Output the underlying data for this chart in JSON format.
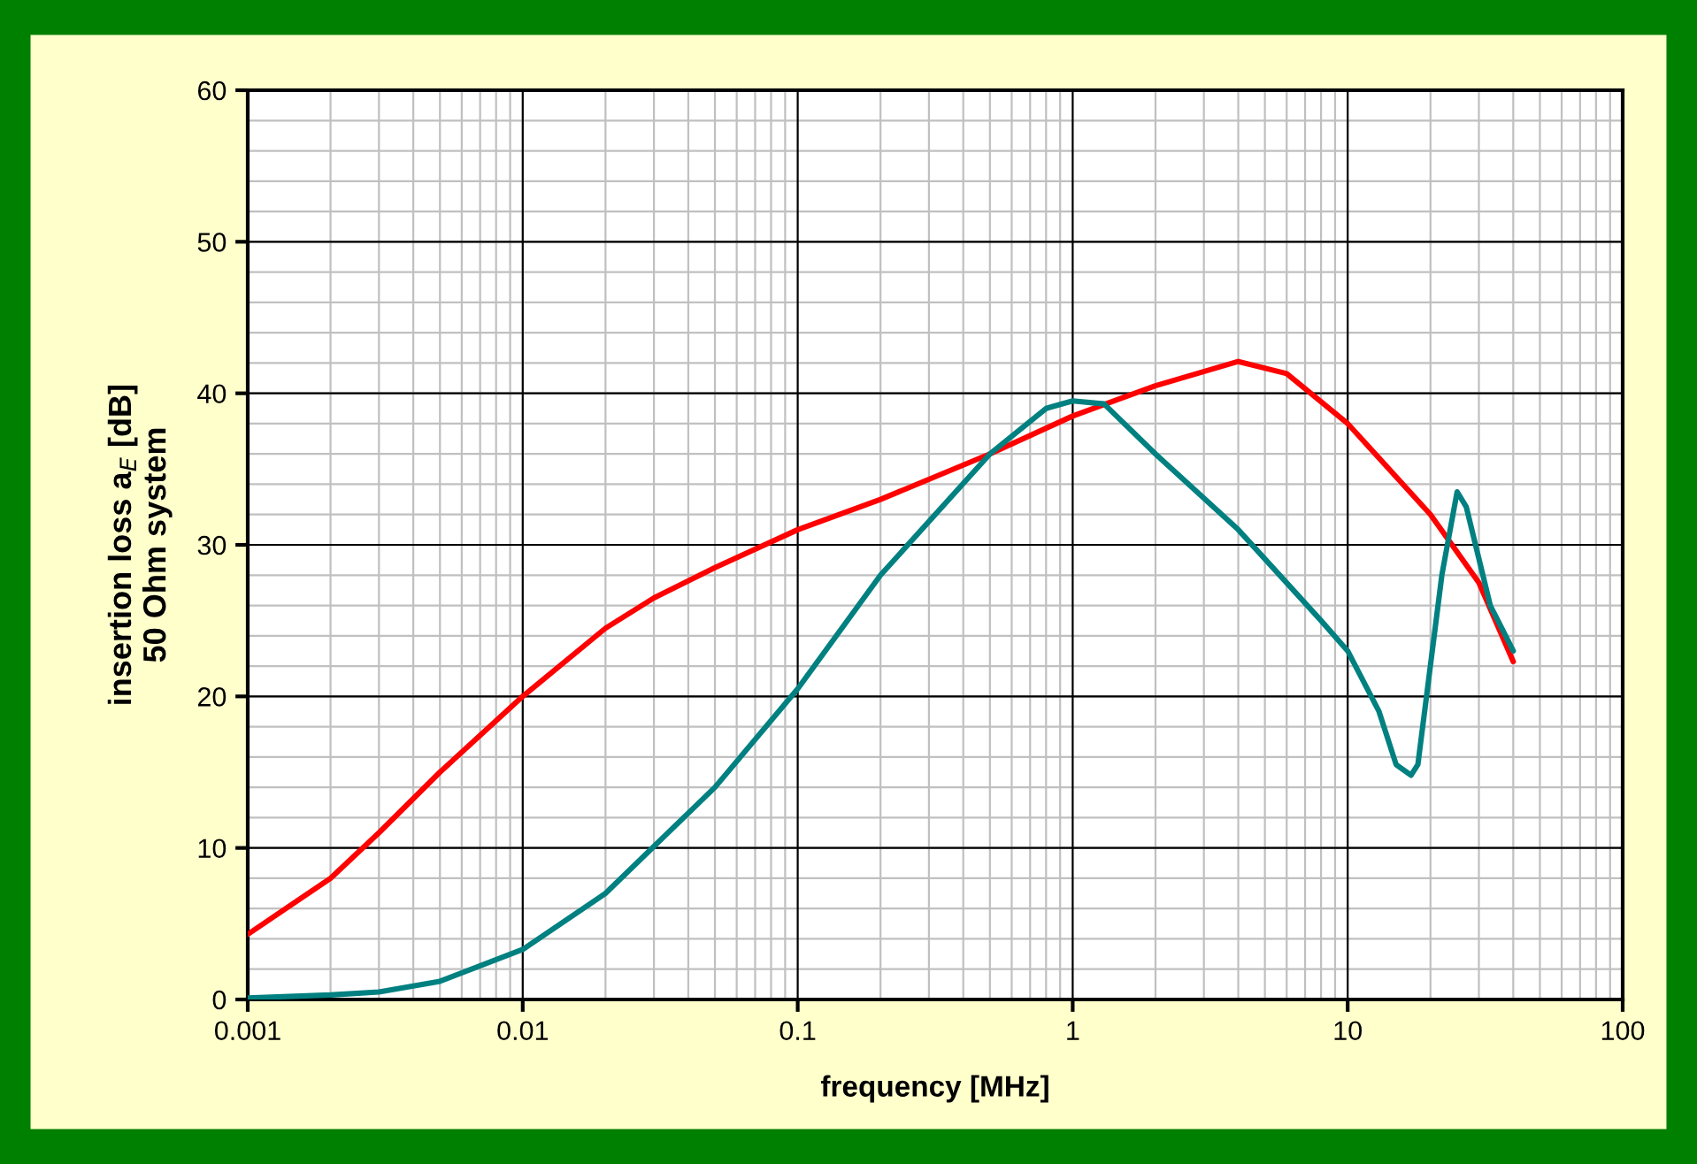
{
  "chart_data": {
    "type": "line",
    "xlabel": "frequency [MHz]",
    "ylabel": "insertion loss a$_{E}$ [dB]\n50 Ohm system",
    "log": "x",
    "grid": true,
    "xlim": [
      0.001,
      100
    ],
    "xticks": [
      0.001,
      0.01,
      0.1,
      1,
      10,
      100
    ],
    "ylim": [
      0,
      60
    ],
    "yticks": [
      0,
      10,
      20,
      30,
      40,
      50,
      60
    ],
    "series": [
      {
        "color": "#ff0000",
        "x": [
          0.001,
          0.002,
          0.003,
          0.005,
          0.01,
          0.02,
          0.03,
          0.05,
          0.1,
          0.2,
          0.5,
          1,
          2,
          4,
          6,
          10,
          20,
          30,
          40
        ],
        "values": [
          4.3,
          8,
          11,
          15,
          20,
          24.5,
          26.5,
          28.5,
          31,
          33,
          36,
          38.5,
          40.5,
          42.1,
          41.3,
          38,
          32,
          27.5,
          22.3
        ]
      },
      {
        "color": "#008080",
        "x": [
          0.001,
          0.002,
          0.003,
          0.005,
          0.01,
          0.02,
          0.05,
          0.1,
          0.2,
          0.5,
          0.8,
          1,
          1.3,
          2,
          4,
          8,
          10,
          13,
          15,
          17,
          18,
          22,
          25,
          27,
          33,
          40
        ],
        "values": [
          0.1,
          0.3,
          0.5,
          1.2,
          3.3,
          7,
          14,
          20.5,
          28,
          36,
          39,
          39.5,
          39.3,
          36,
          31,
          25,
          23,
          19,
          15.5,
          14.8,
          15.5,
          28,
          33.5,
          32.5,
          26,
          23
        ]
      }
    ]
  }
}
